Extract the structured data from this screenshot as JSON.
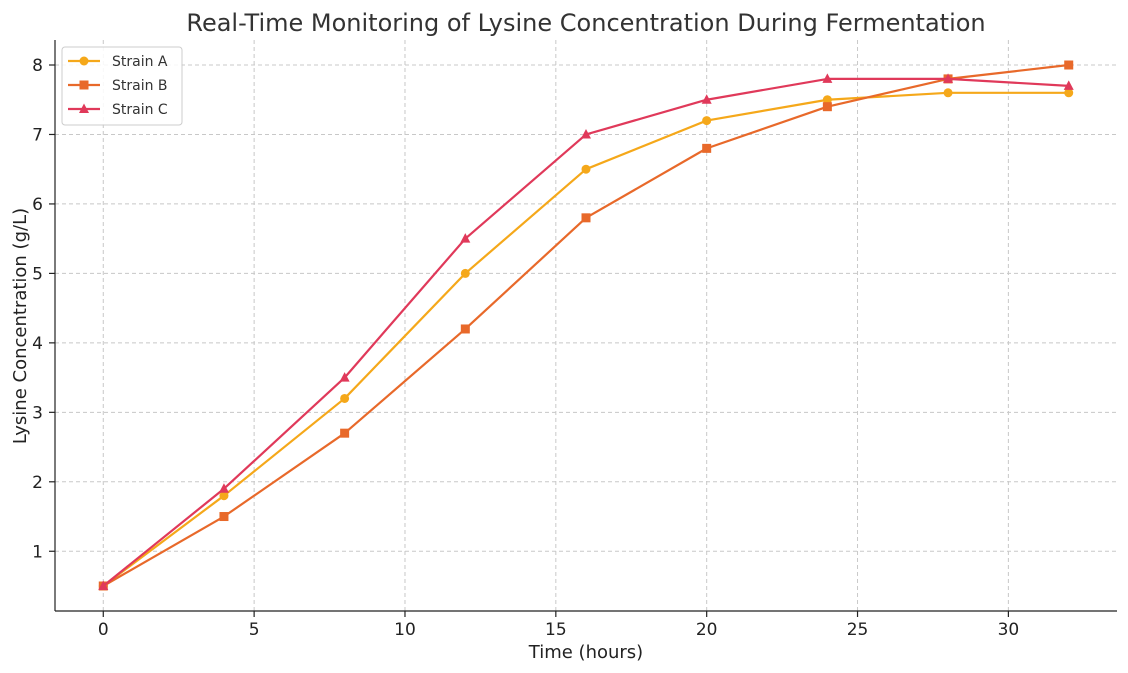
{
  "chart_data": {
    "type": "line",
    "title": "Real-Time Monitoring of Lysine Concentration During Fermentation",
    "xlabel": "Time (hours)",
    "ylabel": "Lysine Concentration (g/L)",
    "xlim": [
      -1.6,
      33.6
    ],
    "ylim": [
      0.14,
      8.36
    ],
    "xticks": [
      0,
      5,
      10,
      15,
      20,
      25,
      30
    ],
    "yticks": [
      1,
      2,
      3,
      4,
      5,
      6,
      7,
      8
    ],
    "grid": true,
    "legend_position": "top-left",
    "x": [
      0,
      4,
      8,
      12,
      16,
      20,
      24,
      28,
      32
    ],
    "series": [
      {
        "name": "Strain A",
        "color": "#f5a81a",
        "marker": "circle",
        "values": [
          0.5,
          1.8,
          3.2,
          5.0,
          6.5,
          7.2,
          7.5,
          7.6,
          7.6
        ]
      },
      {
        "name": "Strain B",
        "color": "#e8692a",
        "marker": "square",
        "values": [
          0.5,
          1.5,
          2.7,
          4.2,
          5.8,
          6.8,
          7.4,
          7.8,
          8.0
        ]
      },
      {
        "name": "Strain C",
        "color": "#e0395a",
        "marker": "triangle",
        "values": [
          0.5,
          1.9,
          3.5,
          5.5,
          7.0,
          7.5,
          7.8,
          7.8,
          7.7
        ]
      }
    ]
  }
}
